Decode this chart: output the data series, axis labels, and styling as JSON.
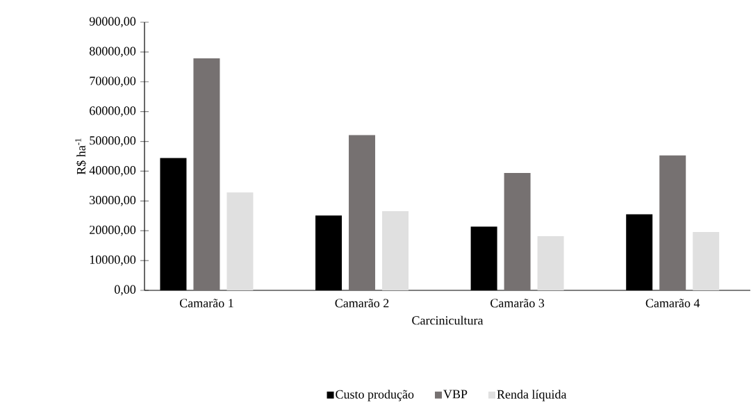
{
  "chart_data": {
    "type": "bar",
    "xlabel": "Carcinicultura",
    "ylabel": "R$ ha$^{-1}$",
    "categories": [
      "Camarão 1",
      "Camarão 2",
      "Camarão 3",
      "Camarão 4"
    ],
    "series": [
      {
        "name": "Custo produção",
        "color": "#000000",
        "values": [
          44400,
          25100,
          21400,
          25500
        ]
      },
      {
        "name": "VBP",
        "color": "#767171",
        "values": [
          77900,
          52100,
          39400,
          45300
        ]
      },
      {
        "name": "Renda líquida",
        "color": "#e0e0e0",
        "values": [
          32900,
          26600,
          18200,
          19600
        ]
      }
    ],
    "ylim": [
      0,
      90000
    ],
    "yticks": [
      {
        "value": 0,
        "label": "0,00"
      },
      {
        "value": 10000,
        "label": "10000,00"
      },
      {
        "value": 20000,
        "label": "20000,00"
      },
      {
        "value": 30000,
        "label": "30000,00"
      },
      {
        "value": 40000,
        "label": "40000,00"
      },
      {
        "value": 50000,
        "label": "50000,00"
      },
      {
        "value": 60000,
        "label": "60000,00"
      },
      {
        "value": 70000,
        "label": "70000,00"
      },
      {
        "value": 80000,
        "label": "80000,00"
      },
      {
        "value": 90000,
        "label": "90000,00"
      }
    ],
    "legend": "bottom",
    "grid": false
  }
}
